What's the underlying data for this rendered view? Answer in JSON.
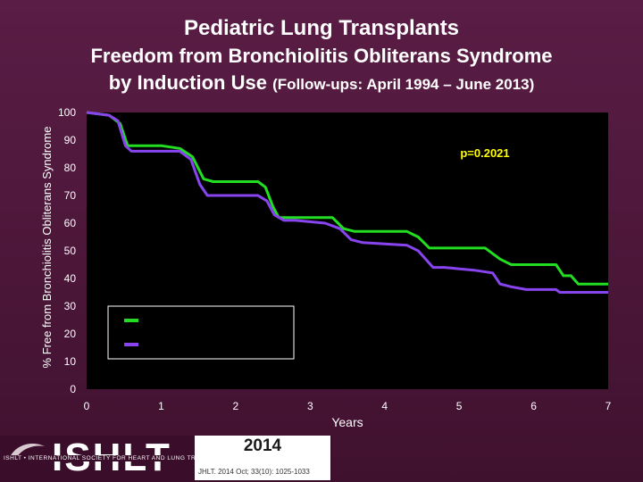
{
  "header": {
    "title": "Pediatric Lung Transplants",
    "subtitle_line1": "Freedom from Bronchiolitis Obliterans Syndrome",
    "subtitle_line2": "by Induction Use",
    "subtitle_note": "(Follow-ups: April 1994 – June 2013)"
  },
  "chart_data": {
    "type": "line",
    "ylabel": "% Free from Bronchiolitis Obliterans Syndrome",
    "xlabel": "Years",
    "xlim": [
      0,
      7
    ],
    "ylim": [
      0,
      100
    ],
    "x_ticks": [
      "0",
      "1",
      "2",
      "3",
      "4",
      "5",
      "6",
      "7"
    ],
    "y_ticks": [
      "0",
      "10",
      "20",
      "30",
      "40",
      "50",
      "60",
      "70",
      "80",
      "90",
      "100"
    ],
    "annotation": "p=0.2021",
    "grid": false,
    "legend_placement": "bottom-left",
    "series": [
      {
        "color": "#22dd22",
        "points": [
          [
            0,
            100
          ],
          [
            0.3,
            99
          ],
          [
            0.45,
            96
          ],
          [
            0.55,
            88
          ],
          [
            0.65,
            88
          ],
          [
            1.0,
            88
          ],
          [
            1.25,
            87
          ],
          [
            1.42,
            84
          ],
          [
            1.57,
            76
          ],
          [
            1.7,
            75
          ],
          [
            1.8,
            75
          ],
          [
            2.3,
            75
          ],
          [
            2.4,
            73
          ],
          [
            2.5,
            66
          ],
          [
            2.58,
            62
          ],
          [
            2.8,
            62
          ],
          [
            3.3,
            62
          ],
          [
            3.45,
            58
          ],
          [
            3.6,
            57
          ],
          [
            4.3,
            57
          ],
          [
            4.45,
            55
          ],
          [
            4.6,
            51
          ],
          [
            4.8,
            51
          ],
          [
            5.35,
            51
          ],
          [
            5.55,
            47
          ],
          [
            5.7,
            45
          ],
          [
            6.3,
            45
          ],
          [
            6.4,
            41
          ],
          [
            6.5,
            41
          ],
          [
            6.6,
            38
          ],
          [
            7.0,
            38
          ]
        ]
      },
      {
        "color": "#8844ee",
        "points": [
          [
            0,
            100
          ],
          [
            0.3,
            99
          ],
          [
            0.42,
            97
          ],
          [
            0.52,
            88
          ],
          [
            0.6,
            86
          ],
          [
            1.0,
            86
          ],
          [
            1.25,
            86
          ],
          [
            1.4,
            83
          ],
          [
            1.52,
            74
          ],
          [
            1.62,
            70
          ],
          [
            1.75,
            70
          ],
          [
            2.3,
            70
          ],
          [
            2.42,
            68
          ],
          [
            2.52,
            63
          ],
          [
            2.65,
            61
          ],
          [
            2.8,
            61
          ],
          [
            3.2,
            60
          ],
          [
            3.4,
            58
          ],
          [
            3.55,
            54
          ],
          [
            3.7,
            53
          ],
          [
            4.3,
            52
          ],
          [
            4.45,
            50
          ],
          [
            4.55,
            47
          ],
          [
            4.65,
            44
          ],
          [
            4.8,
            44
          ],
          [
            5.2,
            43
          ],
          [
            5.45,
            42
          ],
          [
            5.55,
            38
          ],
          [
            5.7,
            37
          ],
          [
            5.9,
            36
          ],
          [
            6.3,
            36
          ],
          [
            6.35,
            35
          ],
          [
            7.0,
            35
          ]
        ]
      }
    ]
  },
  "footer": {
    "logo": "ISHLT",
    "org_line": "ISHLT • INTERNATIONAL SOCIETY FOR HEART AND LUNG TRANSPLANTATION",
    "year": "2014",
    "citation": "JHLT. 2014 Oct; 33(10): 1025-1033"
  }
}
